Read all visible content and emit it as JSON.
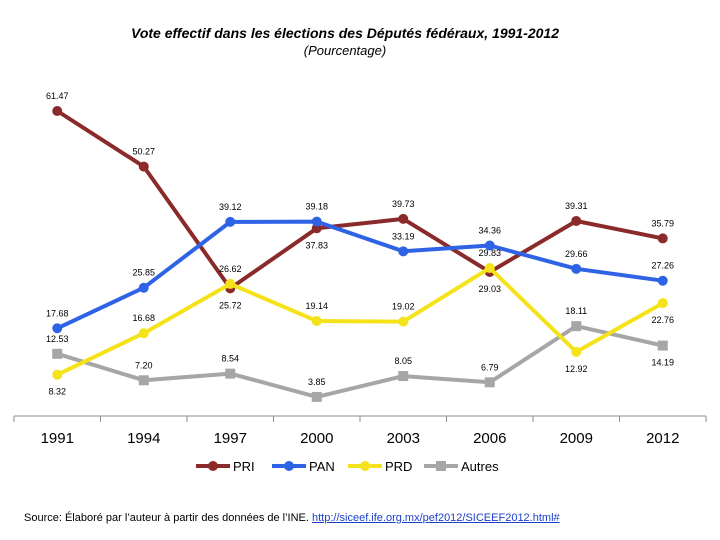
{
  "chart_data": {
    "type": "line",
    "title": "Vote effectif dans les élections des Députés fédéraux, 1991-2012",
    "subtitle": "(Pourcentage)",
    "xlabel": "",
    "ylabel": "",
    "categories": [
      "1991",
      "1994",
      "1997",
      "2000",
      "2003",
      "2006",
      "2009",
      "2012"
    ],
    "ylim": [
      0,
      70
    ],
    "grid": false,
    "legend_position": "bottom",
    "series": [
      {
        "name": "PRI",
        "color": "#8b2a2a",
        "marker": "circle",
        "values": [
          61.47,
          50.27,
          25.72,
          37.83,
          39.73,
          29.03,
          39.31,
          35.79
        ],
        "labels": [
          "61.47",
          "50.27",
          "25.72",
          "37.83",
          "39.73",
          "29.03",
          "39.31",
          "35.79"
        ]
      },
      {
        "name": "PAN",
        "color": "#2f63e6",
        "marker": "circle",
        "values": [
          17.68,
          25.85,
          39.12,
          39.18,
          33.19,
          34.36,
          29.66,
          27.26
        ],
        "labels": [
          "17.68",
          "25.85",
          "39.12",
          "39.18",
          "33.19",
          "34.36",
          "29.66",
          "27.26"
        ]
      },
      {
        "name": "PRD",
        "color": "#f4e21a",
        "marker": "circle",
        "values": [
          8.32,
          16.68,
          26.62,
          19.14,
          19.02,
          29.83,
          12.92,
          22.76
        ],
        "labels": [
          "8.32",
          "16.68",
          "26.62",
          "19.14",
          "19.02",
          "29.83",
          "12.92",
          "22.76"
        ]
      },
      {
        "name": "Autres",
        "color": "#a6a6a6",
        "marker": "square",
        "values": [
          12.53,
          7.2,
          8.54,
          3.85,
          8.05,
          6.79,
          18.11,
          14.19
        ],
        "labels": [
          "12.53",
          "7.20",
          "8.54",
          "3.85",
          "8.05",
          "6.79",
          "18.11",
          "14.19"
        ]
      }
    ]
  },
  "source": {
    "text": "Source: Élaboré par l’auteur à partir des données de l’INE. ",
    "link": "http://siceef.ife.org.mx/pef2012/SICEEF2012.html#"
  }
}
